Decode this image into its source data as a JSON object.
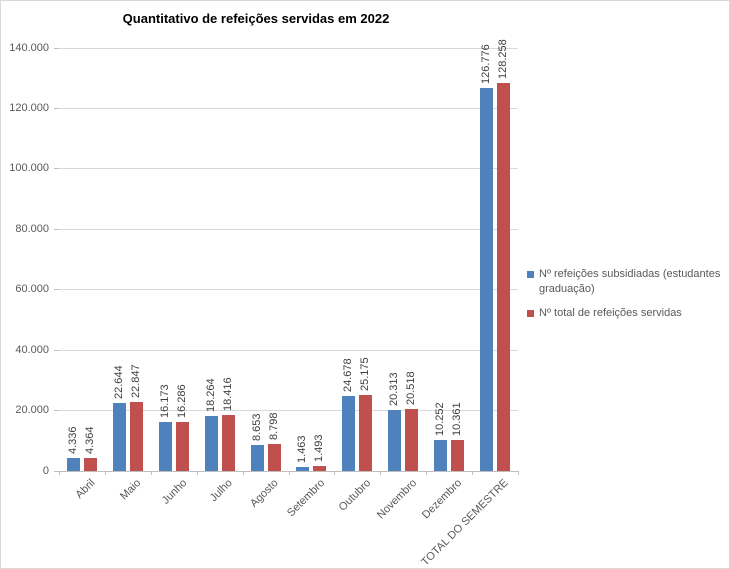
{
  "chart_data": {
    "type": "bar",
    "title": "Quantitativo de refeições servidas em 2022",
    "categories": [
      "Abril",
      "Maio",
      "Junho",
      "Julho",
      "Agosto",
      "Setembro",
      "Outubro",
      "Novembro",
      "Dezembro",
      "TOTAL DO SEMESTRE"
    ],
    "series": [
      {
        "name": "Nº refeições subsidiadas (estudantes graduação)",
        "color": "#4F81BD",
        "values": [
          4336,
          22644,
          16173,
          18264,
          8653,
          1463,
          24678,
          20313,
          10252,
          126776
        ],
        "labels": [
          "4.336",
          "22.644",
          "16.173",
          "18.264",
          "8.653",
          "1.463",
          "24.678",
          "20.313",
          "10.252",
          "126.776"
        ]
      },
      {
        "name": "Nº total de refeições servidas",
        "color": "#C0504D",
        "values": [
          4364,
          22847,
          16286,
          18416,
          8798,
          1493,
          25175,
          20518,
          10361,
          128258
        ],
        "labels": [
          "4.364",
          "22.847",
          "16.286",
          "18.416",
          "8.798",
          "1.493",
          "25.175",
          "20.518",
          "10.361",
          "128.258"
        ]
      }
    ],
    "y_axis": {
      "min": 0,
      "max": 140000,
      "step": 20000,
      "tick_labels": [
        "0",
        "20.000",
        "40.000",
        "60.000",
        "80.000",
        "100.000",
        "120.000",
        "140.000"
      ]
    },
    "xlabel": "",
    "ylabel": "",
    "grid": true,
    "legend_position": "right",
    "colors": {
      "gridline": "#D9D9D9",
      "axis": "#BFBFBF",
      "axis_text": "#595959",
      "value_label_text": "#404040",
      "title_text": "#000000"
    }
  }
}
